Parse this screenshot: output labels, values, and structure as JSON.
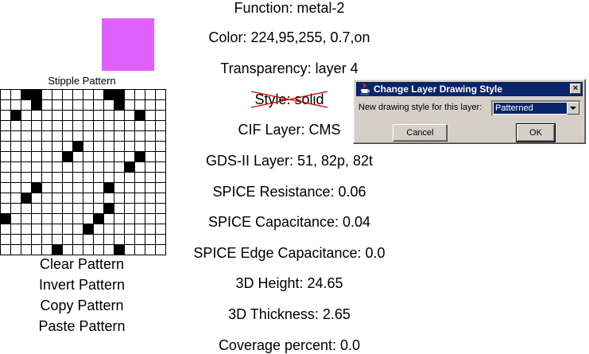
{
  "properties": {
    "function": "Function: metal-2",
    "color": "Color: 224,95,255, 0.7,on",
    "transparency": "Transparency: layer 4",
    "style": "Style: solid",
    "cif_layer": "CIF Layer: CMS",
    "gds_layer": "GDS-II Layer: 51, 82p, 82t",
    "spice_resistance": "SPICE Resistance: 0.06",
    "spice_capacitance": "SPICE Capacitance: 0.04",
    "spice_edge_capacitance": "SPICE Edge Capacitance: 0.0",
    "height_3d": "3D Height: 24.65",
    "thickness_3d": "3D Thickness: 2.65",
    "coverage": "Coverage percent: 0.0"
  },
  "swatch_color": "#e05fff",
  "stipple": {
    "title": "Stipple Pattern",
    "pattern": [
      "0011000000110000",
      "0001000000010000",
      "0100000000000100",
      "0000000000000000",
      "0000000000000000",
      "0000000100000000",
      "0000001000000100",
      "0000000000001000",
      "0000000000000000",
      "0001000000100000",
      "0010000000000000",
      "0000000000100000",
      "1000000001000000",
      "0000000010000000",
      "0000000000000000",
      "0000010000010000"
    ]
  },
  "actions": {
    "clear": "Clear Pattern",
    "invert": "Invert Pattern",
    "copy": "Copy Pattern",
    "paste": "Paste Pattern"
  },
  "dialog": {
    "title": "Change Layer Drawing Style",
    "close_label": "×",
    "label": "New drawing style for this layer:",
    "selected_style": "Patterned",
    "cancel_label": "Cancel",
    "ok_label": "OK"
  },
  "colors": {
    "dialog_bg": "#d4d0c8",
    "titlebar": "#0a246a",
    "strike": "#d00000"
  },
  "icons": [
    "java-cup-icon",
    "close-icon",
    "dropdown-arrow-icon"
  ]
}
